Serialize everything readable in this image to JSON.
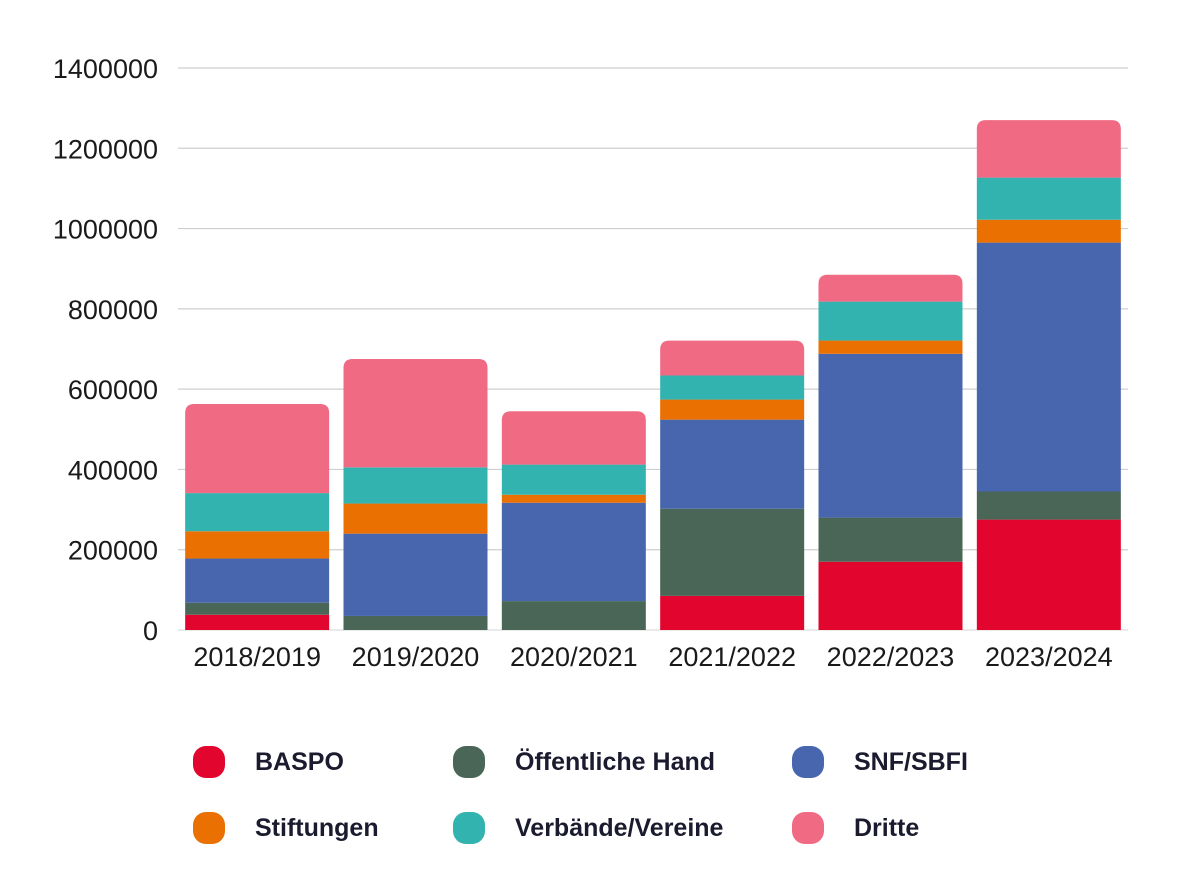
{
  "chart_data": {
    "type": "bar",
    "stacked": true,
    "title": "",
    "xlabel": "",
    "ylabel": "",
    "ylim": [
      0,
      1400000
    ],
    "yticks": [
      0,
      200000,
      400000,
      600000,
      800000,
      1000000,
      1200000,
      1400000
    ],
    "ytick_labels": [
      "0",
      "200000",
      "400000",
      "600000",
      "800000",
      "1000000",
      "1200000",
      "1400000"
    ],
    "grid": true,
    "legend_position": "bottom",
    "categories": [
      "2018/2019",
      "2019/2020",
      "2020/2021",
      "2021/2022",
      "2022/2023",
      "2023/2024"
    ],
    "series": [
      {
        "name": "BASPO",
        "color": "#e2062f",
        "values": [
          38000,
          0,
          0,
          85000,
          170000,
          275000
        ]
      },
      {
        "name": "Öffentliche Hand",
        "color": "#4a6656",
        "values": [
          30000,
          35000,
          72000,
          217000,
          110000,
          70000
        ]
      },
      {
        "name": "SNF/SBFI",
        "color": "#4866ae",
        "values": [
          110000,
          205000,
          245000,
          222000,
          408000,
          620000
        ]
      },
      {
        "name": "Stiftungen",
        "color": "#ea7101",
        "values": [
          68000,
          75000,
          20000,
          50000,
          33000,
          57000
        ]
      },
      {
        "name": "Verbände/Vereine",
        "color": "#33b3b0",
        "values": [
          95000,
          90000,
          75000,
          60000,
          97000,
          105000
        ]
      },
      {
        "name": "Dritte",
        "color": "#f06a84",
        "values": [
          222000,
          270000,
          133000,
          87000,
          67000,
          143000
        ]
      }
    ]
  }
}
